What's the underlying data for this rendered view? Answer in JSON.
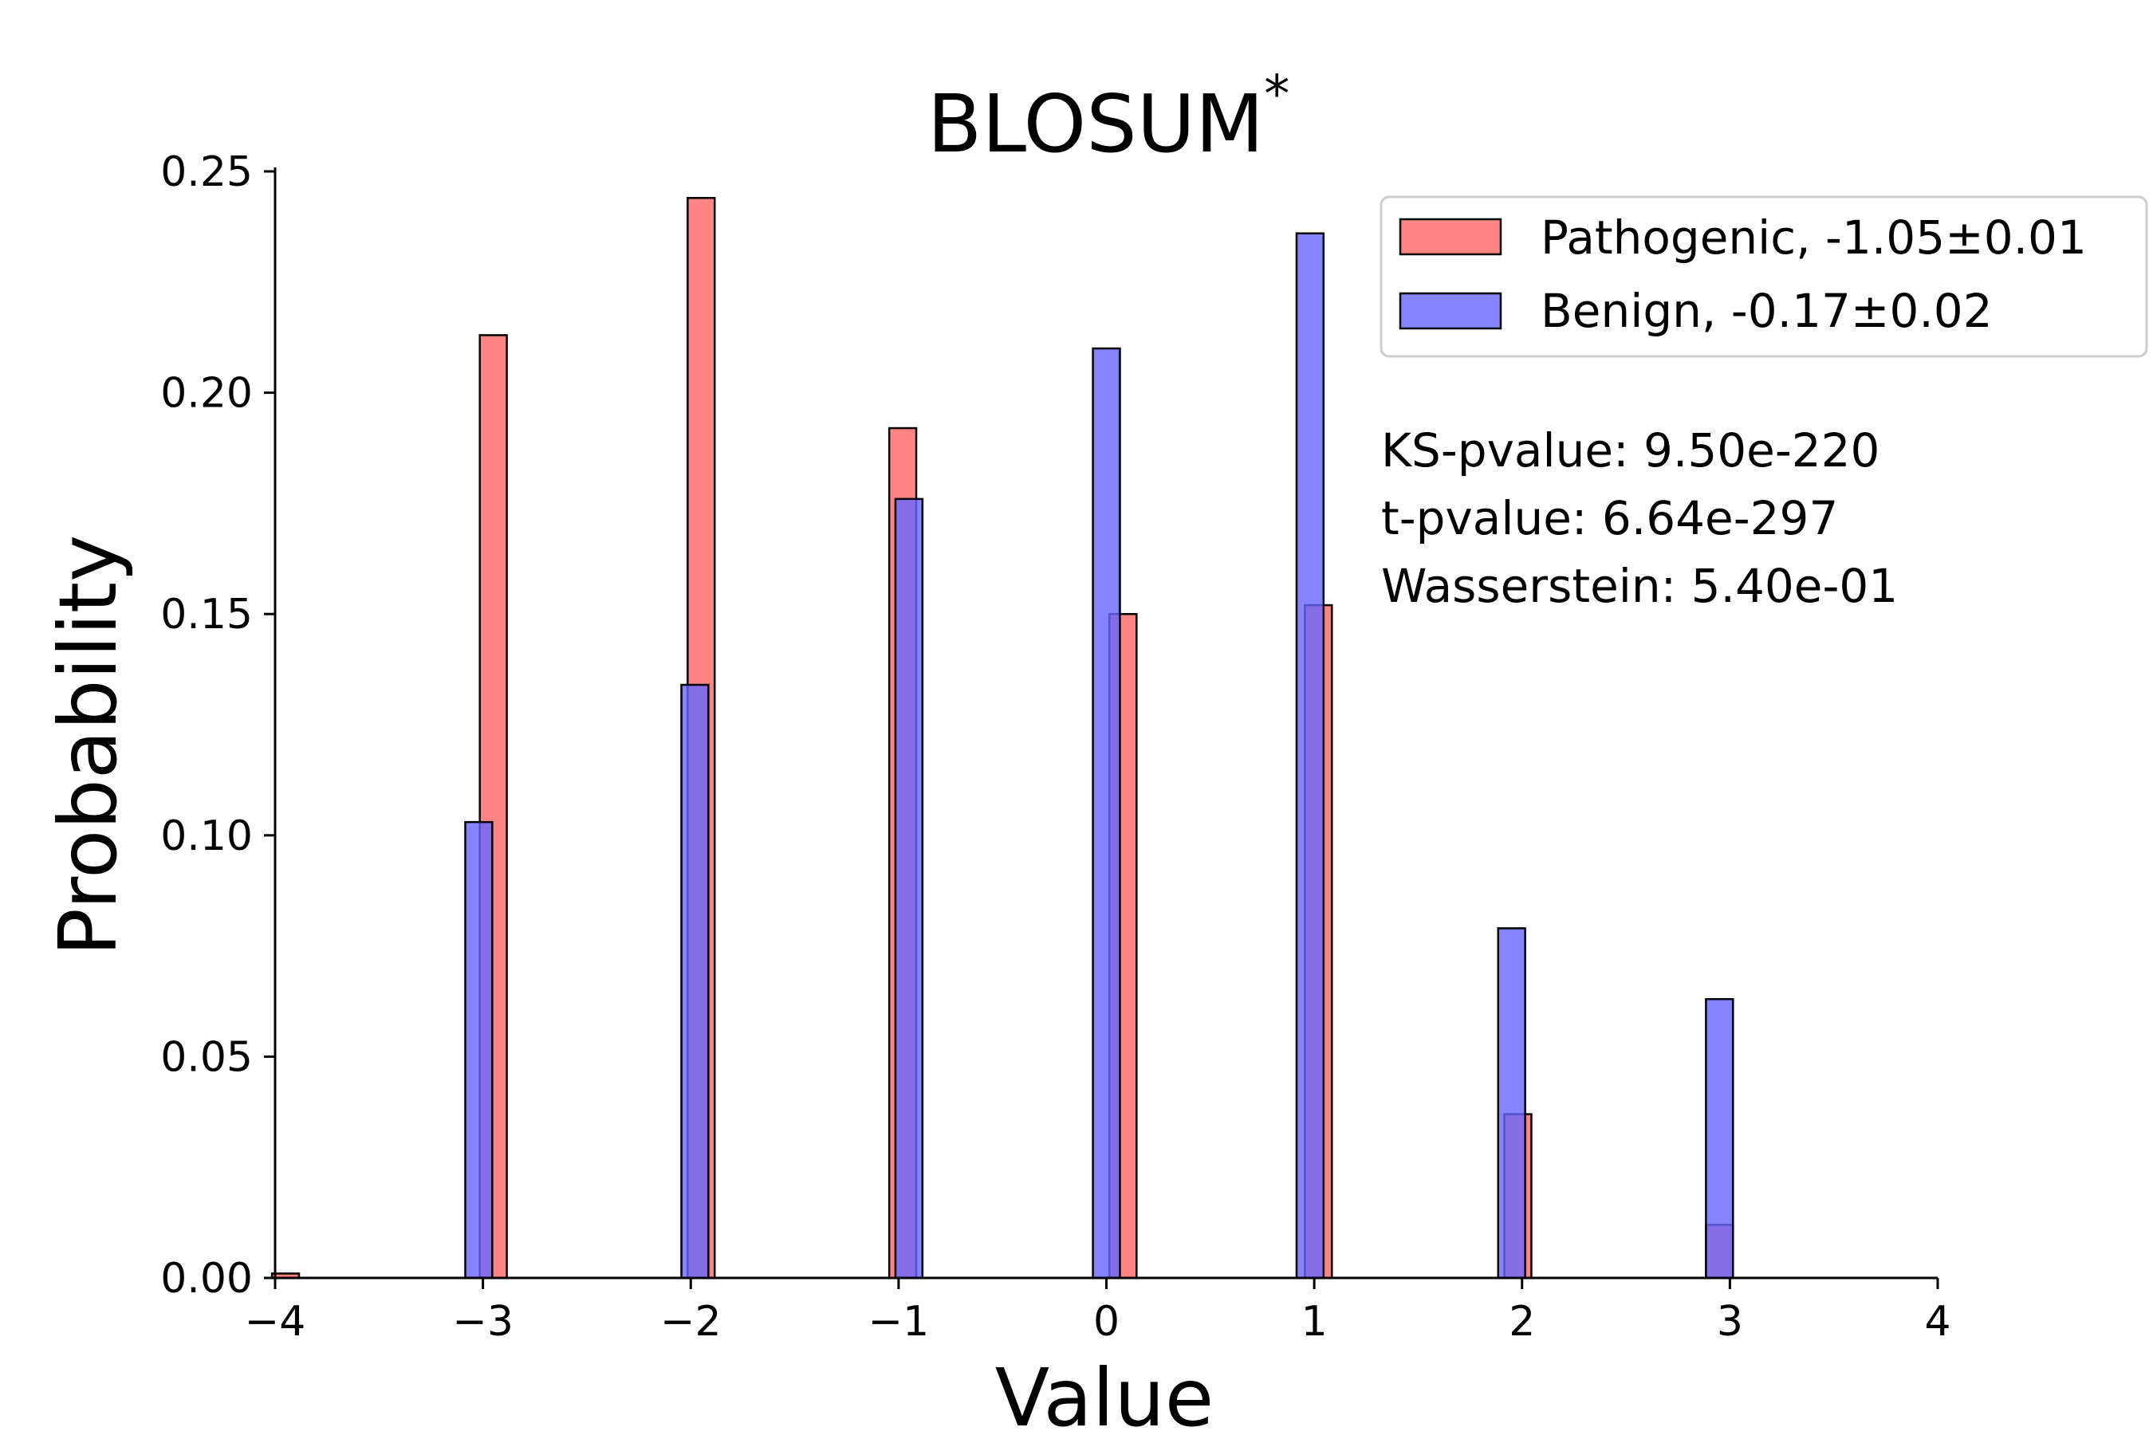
{
  "chart_data": {
    "type": "bar",
    "title": "BLOSUM",
    "title_superscript": "*",
    "xlabel": "Value",
    "ylabel": "Probability",
    "xlim": [
      -4,
      4
    ],
    "ylim": [
      0,
      0.25
    ],
    "x_ticks": [
      -4,
      -3,
      -2,
      -1,
      0,
      1,
      2,
      3,
      4
    ],
    "x_tick_labels": [
      "−4",
      "−3",
      "−2",
      "−1",
      "0",
      "1",
      "2",
      "3",
      "4"
    ],
    "y_ticks": [
      0,
      0.05,
      0.1,
      0.15,
      0.2,
      0.25
    ],
    "y_tick_labels": [
      "0.00",
      "0.05",
      "0.10",
      "0.15",
      "0.20",
      "0.25"
    ],
    "bar_width": 0.13,
    "grid": false,
    "legend_position": "top-right",
    "series": [
      {
        "name": "Pathogenic, -1.05±0.01",
        "color": "#ff6666",
        "bars": [
          {
            "x": -3.95,
            "value": 0.001
          },
          {
            "x": -2.95,
            "value": 0.213
          },
          {
            "x": -1.95,
            "value": 0.244
          },
          {
            "x": -0.98,
            "value": 0.192
          },
          {
            "x": 0.08,
            "value": 0.15
          },
          {
            "x": 1.02,
            "value": 0.152
          },
          {
            "x": 1.98,
            "value": 0.037
          },
          {
            "x": 2.95,
            "value": 0.012
          }
        ]
      },
      {
        "name": "Benign, -0.17±0.02",
        "color": "#6666ff",
        "bars": [
          {
            "x": -3.02,
            "value": 0.103
          },
          {
            "x": -1.98,
            "value": 0.134
          },
          {
            "x": -0.95,
            "value": 0.176
          },
          {
            "x": 0.0,
            "value": 0.21
          },
          {
            "x": 0.98,
            "value": 0.236
          },
          {
            "x": 1.95,
            "value": 0.079
          },
          {
            "x": 2.95,
            "value": 0.063
          }
        ]
      }
    ],
    "stats": [
      "KS-pvalue: 9.50e-220",
      "t-pvalue: 6.64e-297",
      "Wasserstein: 5.40e-01"
    ]
  }
}
